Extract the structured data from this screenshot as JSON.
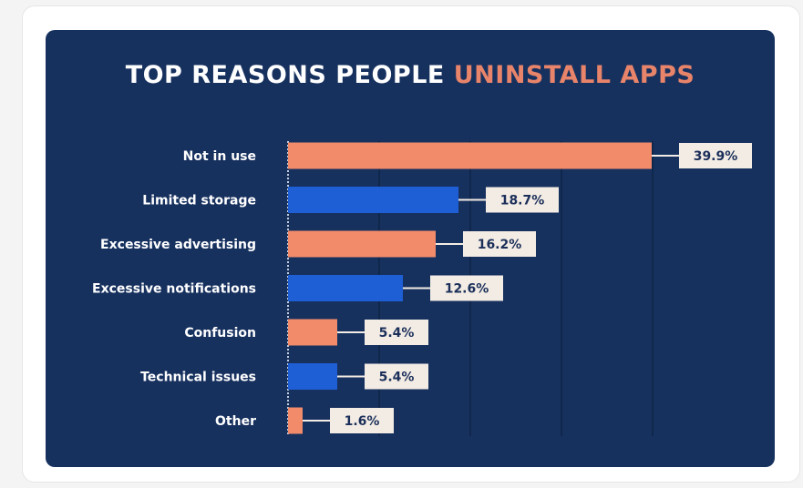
{
  "colors": {
    "panel": "#17315f",
    "bar_orange": "#f28b6a",
    "bar_blue": "#1f5fd6",
    "label_box": "#f3ece4",
    "grid": "#0f2447",
    "title_accent": "#e8846a"
  },
  "chart_data": {
    "type": "bar",
    "orientation": "horizontal",
    "title_parts": [
      "TOP REASONS PEOPLE ",
      "UNINSTALL APPS"
    ],
    "categories": [
      "Not in use",
      "Limited storage",
      "Excessive advertising",
      "Excessive notifications",
      "Confusion",
      "Technical issues",
      "Other"
    ],
    "values": [
      39.9,
      18.7,
      16.2,
      12.6,
      5.4,
      5.4,
      1.6
    ],
    "value_labels": [
      "39.9%",
      "18.7%",
      "16.2%",
      "12.6%",
      "5.4%",
      "5.4%",
      "1.6%"
    ],
    "bar_colors": [
      "orange",
      "blue",
      "orange",
      "blue",
      "orange",
      "blue",
      "orange"
    ],
    "xlim": [
      0,
      52
    ],
    "gridlines_x": [
      10,
      20,
      30,
      40
    ],
    "grid": true,
    "legend": false
  }
}
